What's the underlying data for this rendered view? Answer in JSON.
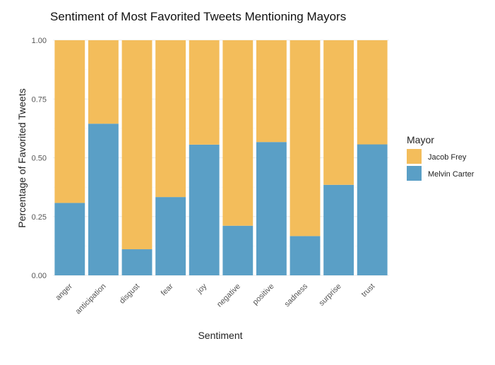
{
  "chart_data": {
    "type": "bar",
    "stacked": true,
    "title": "Sentiment of Most Favorited Tweets Mentioning Mayors",
    "xlabel": "Sentiment",
    "ylabel": "Percentage of Favorited Tweets",
    "ylim": [
      0,
      1
    ],
    "yticks": [
      "0.00",
      "0.25",
      "0.50",
      "0.75",
      "1.00"
    ],
    "categories": [
      "anger",
      "anticipation",
      "disgust",
      "fear",
      "joy",
      "negative",
      "positive",
      "sadness",
      "surprise",
      "trust"
    ],
    "series": [
      {
        "name": "Melvin Carter",
        "color": "#5a9fc6",
        "values": [
          0.308,
          0.645,
          0.111,
          0.333,
          0.556,
          0.211,
          0.567,
          0.167,
          0.385,
          0.557
        ]
      },
      {
        "name": "Jacob Frey",
        "color": "#f3bd5b",
        "values": [
          0.692,
          0.355,
          0.889,
          0.667,
          0.444,
          0.789,
          0.433,
          0.833,
          0.615,
          0.443
        ]
      }
    ],
    "legend": {
      "title": "Mayor",
      "entries": [
        "Jacob Frey",
        "Melvin Carter"
      ],
      "position": "right"
    },
    "grid": true
  }
}
